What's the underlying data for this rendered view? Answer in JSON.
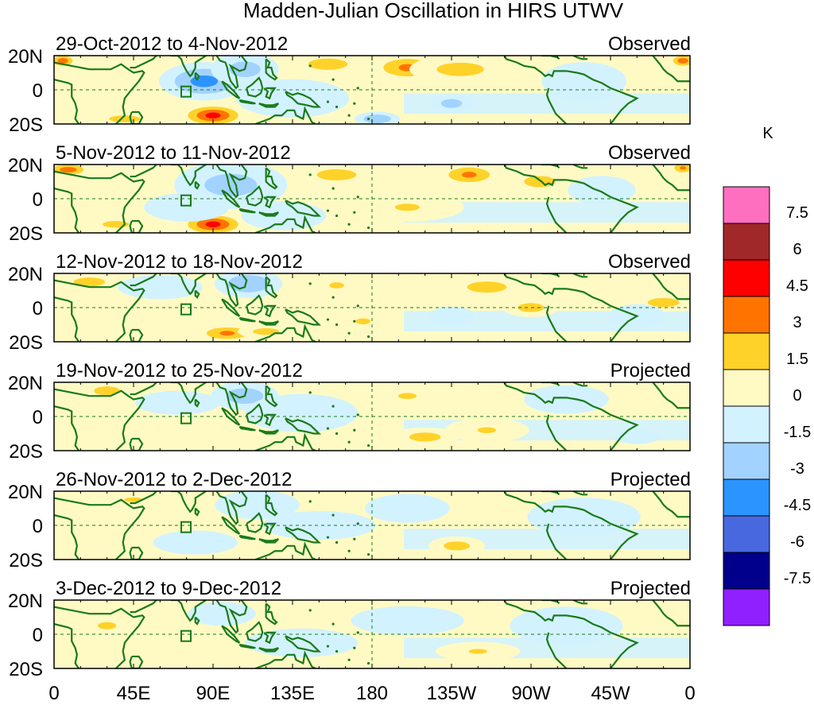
{
  "chart_data": {
    "type": "heatmap",
    "title": "Madden-Julian Oscillation in HIRS UTWV",
    "colorbar": {
      "unit": "K",
      "levels": [
        "7.5",
        "6",
        "4.5",
        "3",
        "1.5",
        "0",
        "-1.5",
        "-3",
        "-4.5",
        "-6",
        "-7.5"
      ],
      "colors": [
        "#ff6fc0",
        "#a02828",
        "#ff0000",
        "#ff7400",
        "#ffd22a",
        "#fffac4",
        "#d2f2ff",
        "#a2d2ff",
        "#2c94ff",
        "#4868e0",
        "#00008c",
        "#9020ff"
      ]
    },
    "x_ticks": [
      "0",
      "45E",
      "90E",
      "135E",
      "180",
      "135W",
      "90W",
      "45W",
      "0"
    ],
    "y_ticks": [
      "20N",
      "0",
      "20S"
    ],
    "panels": [
      {
        "period": "29-Oct-2012 to 4-Nov-2012",
        "status": "Observed"
      },
      {
        "period": "5-Nov-2012 to 11-Nov-2012",
        "status": "Observed"
      },
      {
        "period": "12-Nov-2012 to 18-Nov-2012",
        "status": "Observed"
      },
      {
        "period": "19-Nov-2012 to 25-Nov-2012",
        "status": "Projected"
      },
      {
        "period": "26-Nov-2012 to 2-Dec-2012",
        "status": "Projected"
      },
      {
        "period": "3-Dec-2012 to 9-Dec-2012",
        "status": "Projected"
      }
    ],
    "anomalies": [
      [
        {
          "lon": 5,
          "lat": 17,
          "val": 4,
          "rx": 5,
          "ry": 3
        },
        {
          "lon": 356,
          "lat": 17,
          "val": 4,
          "rx": 5,
          "ry": 3
        },
        {
          "lon": 85,
          "lat": 5,
          "val": -3.5,
          "rx": 16,
          "ry": 8
        },
        {
          "lon": 108,
          "lat": 12,
          "val": -2,
          "rx": 12,
          "ry": 7
        },
        {
          "lon": 90,
          "lat": -15,
          "val": 5,
          "rx": 12,
          "ry": 5
        },
        {
          "lon": 200,
          "lat": 13,
          "val": 3,
          "rx": 14,
          "ry": 6
        },
        {
          "lon": 230,
          "lat": 12,
          "val": 2,
          "rx": 18,
          "ry": 6
        },
        {
          "lon": 155,
          "lat": 15,
          "val": 2,
          "rx": 15,
          "ry": 5
        },
        {
          "lon": 135,
          "lat": -5,
          "val": -1.5,
          "rx": 20,
          "ry": 8
        },
        {
          "lon": 183,
          "lat": -17,
          "val": -3,
          "rx": 8,
          "ry": 3
        },
        {
          "lon": 40,
          "lat": -17,
          "val": 2,
          "rx": 12,
          "ry": 3
        },
        {
          "lon": 225,
          "lat": -8,
          "val": -2,
          "rx": 8,
          "ry": 4
        },
        {
          "lon": 300,
          "lat": 5,
          "val": -1.5,
          "rx": 15,
          "ry": 8
        }
      ],
      [
        {
          "lon": 8,
          "lat": 17,
          "val": 4,
          "rx": 8,
          "ry": 3
        },
        {
          "lon": 356,
          "lat": 18,
          "val": 3,
          "rx": 5,
          "ry": 3
        },
        {
          "lon": 100,
          "lat": 8,
          "val": -2,
          "rx": 20,
          "ry": 10
        },
        {
          "lon": 90,
          "lat": -15,
          "val": 5,
          "rx": 12,
          "ry": 5
        },
        {
          "lon": 160,
          "lat": 14,
          "val": 2,
          "rx": 15,
          "ry": 5
        },
        {
          "lon": 235,
          "lat": 14,
          "val": 3,
          "rx": 12,
          "ry": 5
        },
        {
          "lon": 275,
          "lat": 10,
          "val": 2,
          "rx": 12,
          "ry": 5
        },
        {
          "lon": 75,
          "lat": -5,
          "val": -1.5,
          "rx": 15,
          "ry": 6
        },
        {
          "lon": 130,
          "lat": -10,
          "val": -1.5,
          "rx": 15,
          "ry": 6
        },
        {
          "lon": 35,
          "lat": -15,
          "val": 2,
          "rx": 10,
          "ry": 3
        },
        {
          "lon": 310,
          "lat": 5,
          "val": -1.5,
          "rx": 12,
          "ry": 6
        },
        {
          "lon": 200,
          "lat": -5,
          "val": 1.5,
          "rx": 20,
          "ry": 6
        }
      ],
      [
        {
          "lon": 110,
          "lat": 14,
          "val": -3,
          "rx": 12,
          "ry": 6
        },
        {
          "lon": 20,
          "lat": 15,
          "val": 2,
          "rx": 12,
          "ry": 4
        },
        {
          "lon": 60,
          "lat": 12,
          "val": -1.5,
          "rx": 15,
          "ry": 5
        },
        {
          "lon": 98,
          "lat": -15,
          "val": 3,
          "rx": 12,
          "ry": 4
        },
        {
          "lon": 120,
          "lat": -14,
          "val": 2,
          "rx": 10,
          "ry": 3
        },
        {
          "lon": 160,
          "lat": 13,
          "val": 1.5,
          "rx": 12,
          "ry": 5
        },
        {
          "lon": 245,
          "lat": 12,
          "val": 2,
          "rx": 15,
          "ry": 5
        },
        {
          "lon": 270,
          "lat": 0,
          "val": 2,
          "rx": 10,
          "ry": 4
        },
        {
          "lon": 225,
          "lat": -5,
          "val": -1.5,
          "rx": 8,
          "ry": 4
        },
        {
          "lon": 175,
          "lat": -8,
          "val": 1.5,
          "rx": 12,
          "ry": 5
        },
        {
          "lon": 345,
          "lat": 3,
          "val": 2,
          "rx": 12,
          "ry": 4
        },
        {
          "lon": 330,
          "lat": -5,
          "val": -1.5,
          "rx": 10,
          "ry": 5
        }
      ],
      [
        {
          "lon": 30,
          "lat": 15,
          "val": 2,
          "rx": 10,
          "ry": 4
        },
        {
          "lon": 108,
          "lat": 12,
          "val": -2.5,
          "rx": 12,
          "ry": 6
        },
        {
          "lon": 70,
          "lat": 8,
          "val": -1.5,
          "rx": 15,
          "ry": 5
        },
        {
          "lon": 140,
          "lat": 2,
          "val": -1.5,
          "rx": 20,
          "ry": 8
        },
        {
          "lon": 210,
          "lat": -12,
          "val": 2,
          "rx": 12,
          "ry": 4
        },
        {
          "lon": 245,
          "lat": -8,
          "val": 1.5,
          "rx": 15,
          "ry": 5
        },
        {
          "lon": 200,
          "lat": 12,
          "val": 1.5,
          "rx": 15,
          "ry": 5
        },
        {
          "lon": 330,
          "lat": -12,
          "val": -1.5,
          "rx": 8,
          "ry": 3
        },
        {
          "lon": 290,
          "lat": 10,
          "val": -1.5,
          "rx": 15,
          "ry": 6
        }
      ],
      [
        {
          "lon": 45,
          "lat": 15,
          "val": 1.5,
          "rx": 15,
          "ry": 4
        },
        {
          "lon": 115,
          "lat": 12,
          "val": -1.5,
          "rx": 15,
          "ry": 6
        },
        {
          "lon": 150,
          "lat": 0,
          "val": -1.5,
          "rx": 20,
          "ry": 6
        },
        {
          "lon": 228,
          "lat": -12,
          "val": 2,
          "rx": 10,
          "ry": 4
        },
        {
          "lon": 200,
          "lat": 10,
          "val": -1.5,
          "rx": 15,
          "ry": 6
        },
        {
          "lon": 300,
          "lat": 5,
          "val": -1.5,
          "rx": 20,
          "ry": 8
        },
        {
          "lon": 80,
          "lat": -10,
          "val": -1.5,
          "rx": 15,
          "ry": 5
        }
      ],
      [
        {
          "lon": 95,
          "lat": 12,
          "val": -1.5,
          "rx": 12,
          "ry": 5
        },
        {
          "lon": 30,
          "lat": 5,
          "val": 1.5,
          "rx": 15,
          "ry": 6
        },
        {
          "lon": 140,
          "lat": -5,
          "val": -1.5,
          "rx": 20,
          "ry": 6
        },
        {
          "lon": 200,
          "lat": 8,
          "val": -1.5,
          "rx": 20,
          "ry": 6
        },
        {
          "lon": 290,
          "lat": 5,
          "val": -1.5,
          "rx": 20,
          "ry": 8
        },
        {
          "lon": 240,
          "lat": -10,
          "val": 1.5,
          "rx": 15,
          "ry": 4
        }
      ]
    ]
  }
}
